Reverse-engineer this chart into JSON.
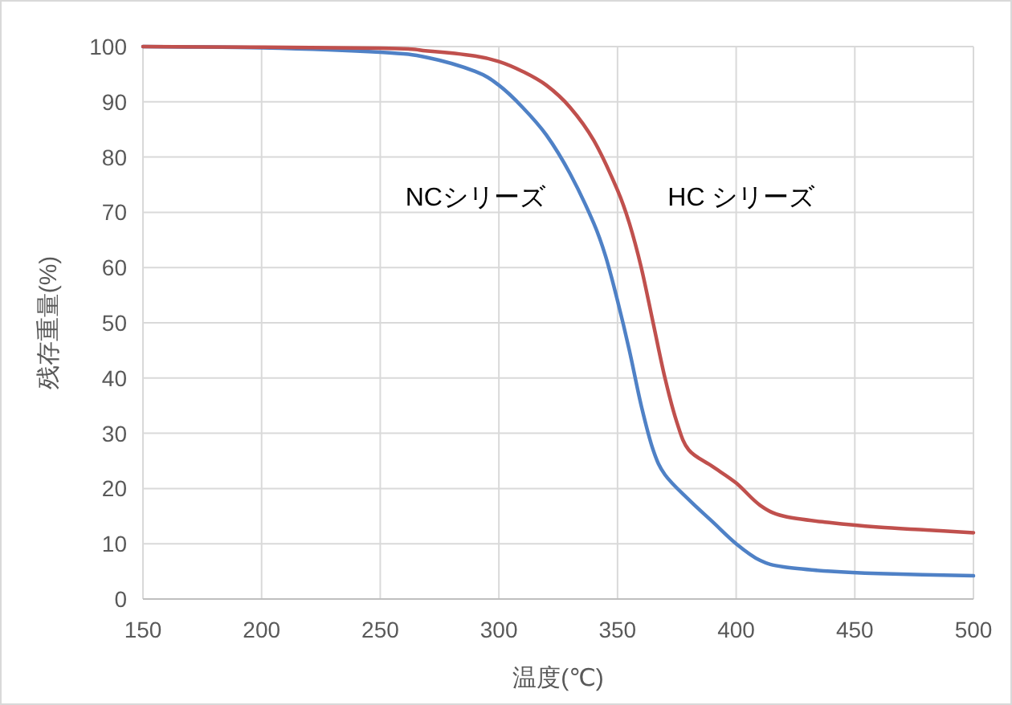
{
  "chart_data": {
    "type": "line",
    "xlabel": "温度(℃)",
    "ylabel": "残存重量(%)",
    "xlim": [
      150,
      500
    ],
    "ylim": [
      0,
      100
    ],
    "xticks": [
      150,
      200,
      250,
      300,
      350,
      400,
      450,
      500
    ],
    "yticks": [
      0,
      10,
      20,
      30,
      40,
      50,
      60,
      70,
      80,
      90,
      100
    ],
    "grid": true,
    "marker": "none",
    "line_style": "solid",
    "series": [
      {
        "name": "NCシリーズ",
        "color": "#4f81c6",
        "x": [
          150,
          200,
          250,
          270,
          290,
          300,
          310,
          320,
          330,
          340,
          345,
          350,
          355,
          360,
          365,
          370,
          380,
          390,
          400,
          410,
          420,
          440,
          460,
          500
        ],
        "values": [
          100,
          99.8,
          99,
          98,
          95.5,
          93,
          89,
          84,
          77,
          68,
          62,
          54,
          45,
          35,
          27,
          22.5,
          18,
          14,
          10,
          7,
          5.8,
          5,
          4.6,
          4.2
        ]
      },
      {
        "name": "HC シリーズ",
        "color": "#c0504d",
        "x": [
          150,
          250,
          270,
          290,
          300,
          310,
          320,
          330,
          340,
          350,
          355,
          360,
          365,
          370,
          375,
          380,
          390,
          400,
          410,
          420,
          440,
          460,
          480,
          500
        ],
        "values": [
          100,
          99.7,
          99.2,
          98.3,
          97.3,
          95.5,
          93,
          89,
          83,
          74,
          68,
          60,
          50,
          40,
          32,
          27,
          24,
          21,
          17,
          15,
          13.8,
          13,
          12.5,
          12
        ]
      }
    ]
  }
}
